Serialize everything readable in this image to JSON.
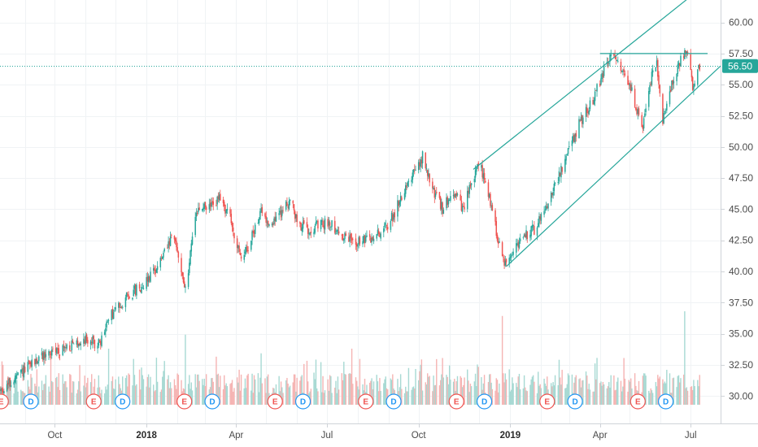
{
  "chart_data": {
    "type": "candlestick",
    "x_range": [
      "2017-08-07",
      "2019-07-31"
    ],
    "ylim": [
      27.8,
      61.8
    ],
    "y_ticks": [
      "60.00",
      "57.50",
      "55.00",
      "52.50",
      "50.00",
      "47.50",
      "45.00",
      "42.50",
      "40.00",
      "37.50",
      "35.00",
      "32.50",
      "30.00"
    ],
    "x_ticks": [
      {
        "date": "2017-10-01",
        "label": "Oct",
        "bold": false
      },
      {
        "date": "2018-01-01",
        "label": "2018",
        "bold": true
      },
      {
        "date": "2018-04-01",
        "label": "Apr",
        "bold": false
      },
      {
        "date": "2018-07-01",
        "label": "Jul",
        "bold": false
      },
      {
        "date": "2018-10-01",
        "label": "Oct",
        "bold": false
      },
      {
        "date": "2019-01-01",
        "label": "2019",
        "bold": true
      },
      {
        "date": "2019-04-01",
        "label": "Apr",
        "bold": false
      },
      {
        "date": "2019-07-01",
        "label": "Jul",
        "bold": false
      }
    ],
    "price_path": [
      [
        "2017-08-07",
        30.4
      ],
      [
        "2017-08-20",
        31.2
      ],
      [
        "2017-09-05",
        32.4
      ],
      [
        "2017-09-20",
        33.3
      ],
      [
        "2017-10-05",
        33.7
      ],
      [
        "2017-10-20",
        34.1
      ],
      [
        "2017-11-01",
        34.6
      ],
      [
        "2017-11-15",
        34.1
      ],
      [
        "2017-11-24",
        36.2
      ],
      [
        "2017-12-10",
        37.8
      ],
      [
        "2017-12-28",
        38.9
      ],
      [
        "2018-01-15",
        40.8
      ],
      [
        "2018-01-28",
        42.9
      ],
      [
        "2018-02-05",
        40.2
      ],
      [
        "2018-02-10",
        38.0
      ],
      [
        "2018-02-15",
        42.6
      ],
      [
        "2018-02-22",
        45.0
      ],
      [
        "2018-03-05",
        45.2
      ],
      [
        "2018-03-15",
        45.8
      ],
      [
        "2018-03-25",
        44.6
      ],
      [
        "2018-04-05",
        41.0
      ],
      [
        "2018-04-15",
        42.3
      ],
      [
        "2018-04-25",
        44.8
      ],
      [
        "2018-05-05",
        43.8
      ],
      [
        "2018-05-15",
        44.6
      ],
      [
        "2018-05-25",
        45.8
      ],
      [
        "2018-06-01",
        44.0
      ],
      [
        "2018-06-10",
        43.4
      ],
      [
        "2018-06-25",
        43.7
      ],
      [
        "2018-07-05",
        44.0
      ],
      [
        "2018-07-15",
        42.8
      ],
      [
        "2018-08-01",
        42.4
      ],
      [
        "2018-08-15",
        42.6
      ],
      [
        "2018-09-01",
        43.8
      ],
      [
        "2018-09-10",
        45.3
      ],
      [
        "2018-09-20",
        47.3
      ],
      [
        "2018-10-01",
        48.4
      ],
      [
        "2018-10-05",
        49.2
      ],
      [
        "2018-10-15",
        46.6
      ],
      [
        "2018-10-25",
        45.0
      ],
      [
        "2018-11-05",
        46.5
      ],
      [
        "2018-11-15",
        44.8
      ],
      [
        "2018-11-22",
        47.0
      ],
      [
        "2018-12-01",
        48.6
      ],
      [
        "2018-12-10",
        46.4
      ],
      [
        "2018-12-18",
        43.2
      ],
      [
        "2018-12-26",
        40.7
      ],
      [
        "2019-01-10",
        42.4
      ],
      [
        "2019-01-25",
        43.4
      ],
      [
        "2019-02-10",
        46.0
      ],
      [
        "2019-02-25",
        48.8
      ],
      [
        "2019-03-10",
        51.7
      ],
      [
        "2019-03-25",
        53.8
      ],
      [
        "2019-04-05",
        56.2
      ],
      [
        "2019-04-12",
        57.3
      ],
      [
        "2019-04-25",
        56.2
      ],
      [
        "2019-05-05",
        54.0
      ],
      [
        "2019-05-13",
        51.2
      ],
      [
        "2019-05-20",
        54.9
      ],
      [
        "2019-05-28",
        56.8
      ],
      [
        "2019-06-03",
        52.0
      ],
      [
        "2019-06-10",
        54.6
      ],
      [
        "2019-06-20",
        56.9
      ],
      [
        "2019-06-27",
        57.6
      ],
      [
        "2019-07-03",
        54.8
      ],
      [
        "2019-07-10",
        56.5
      ]
    ],
    "volume_spikes": [
      {
        "date": "2017-11-24",
        "level": 0.6
      },
      {
        "date": "2018-02-09",
        "level": 0.75
      },
      {
        "date": "2018-04-26",
        "level": 0.55
      },
      {
        "date": "2018-07-26",
        "level": 0.6
      },
      {
        "date": "2018-10-25",
        "level": 0.5
      },
      {
        "date": "2018-12-24",
        "level": 0.95
      },
      {
        "date": "2019-04-25",
        "level": 0.5
      },
      {
        "date": "2019-06-25",
        "level": 1.0
      }
    ],
    "event_markers": [
      {
        "date": "2017-08-08",
        "type": "E"
      },
      {
        "date": "2017-09-07",
        "type": "D"
      },
      {
        "date": "2017-11-09",
        "type": "E"
      },
      {
        "date": "2017-12-08",
        "type": "D"
      },
      {
        "date": "2018-02-08",
        "type": "E"
      },
      {
        "date": "2018-03-08",
        "type": "D"
      },
      {
        "date": "2018-05-10",
        "type": "E"
      },
      {
        "date": "2018-06-07",
        "type": "D"
      },
      {
        "date": "2018-08-09",
        "type": "E"
      },
      {
        "date": "2018-09-06",
        "type": "D"
      },
      {
        "date": "2018-11-08",
        "type": "E"
      },
      {
        "date": "2018-12-06",
        "type": "D"
      },
      {
        "date": "2019-02-07",
        "type": "E"
      },
      {
        "date": "2019-03-07",
        "type": "D"
      },
      {
        "date": "2019-05-09",
        "type": "E"
      },
      {
        "date": "2019-06-06",
        "type": "D"
      }
    ],
    "trendlines": [
      {
        "name": "channel-upper",
        "from": [
          "2018-11-25",
          48.2
        ],
        "to": [
          "2019-06-28",
          61.9
        ]
      },
      {
        "name": "channel-lower",
        "from": [
          "2018-12-28",
          40.4
        ],
        "to": [
          "2019-07-31",
          56.5
        ]
      },
      {
        "name": "resistance",
        "from": [
          "2019-04-01",
          57.5
        ],
        "to": [
          "2019-07-18",
          57.5
        ]
      }
    ],
    "current_price_line": 56.5,
    "last_price_label": "56.50",
    "colors": {
      "up": "#26a69a",
      "down": "#ef5350",
      "volume_up": "#a7d9d3",
      "volume_down": "#f5b4b3",
      "grid": "#f0f3f5",
      "trendline": "#26a69a",
      "price_line": "#26a69a",
      "price_tag": "#26a69a",
      "marker_e": "#ef5350",
      "marker_d": "#2196f3"
    }
  }
}
